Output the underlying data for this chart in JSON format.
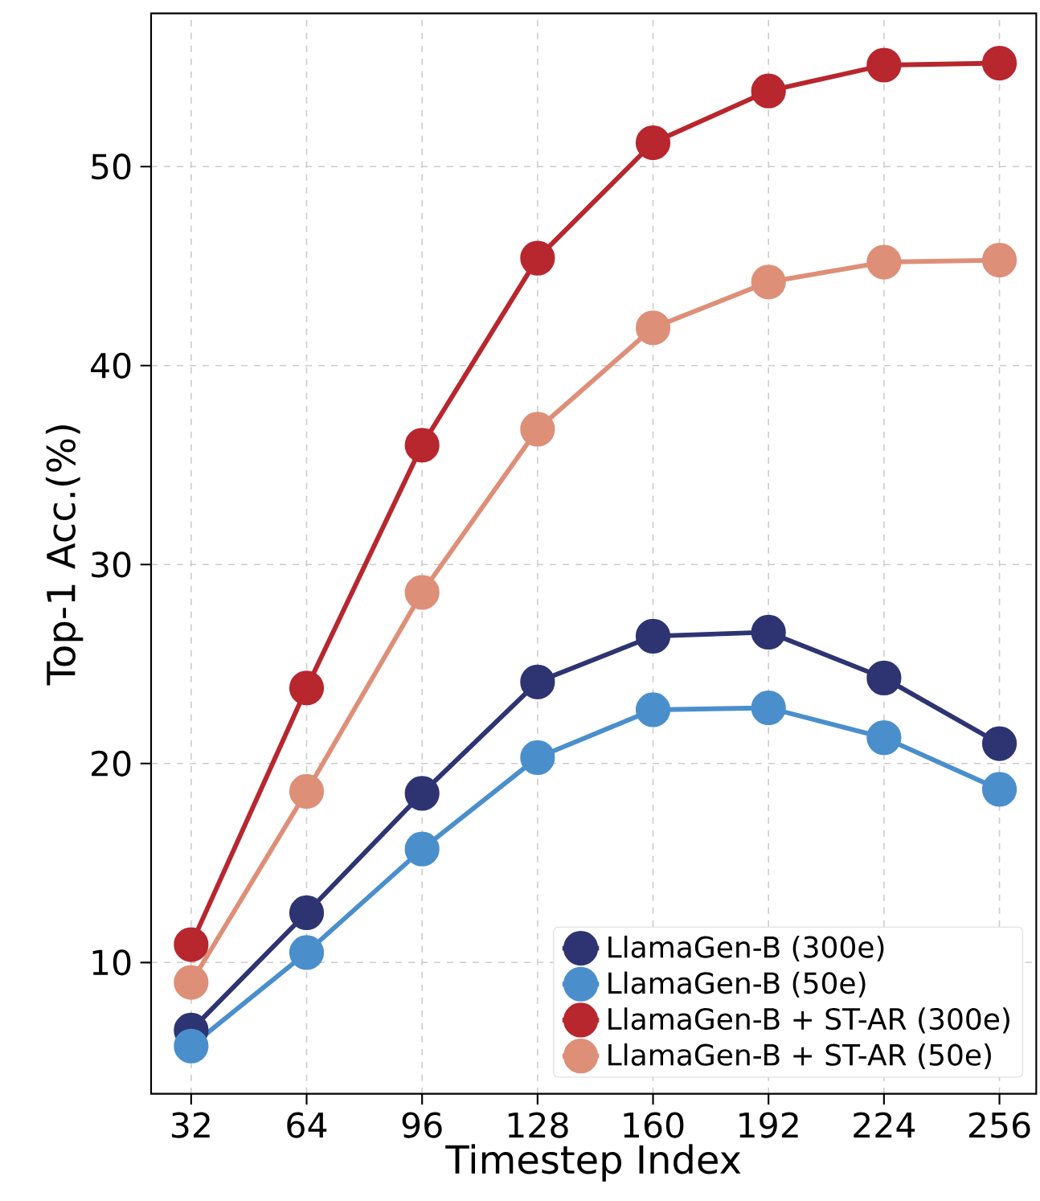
{
  "chart_data": {
    "type": "line",
    "xlabel": "Timestep Index",
    "ylabel": "Top-1 Acc.(%)",
    "x": [
      32,
      64,
      96,
      128,
      160,
      192,
      224,
      256
    ],
    "xlim": [
      20.9,
      266.2
    ],
    "ylim": [
      3.4,
      57.7
    ],
    "xticks": [
      32,
      64,
      96,
      128,
      160,
      192,
      224,
      256
    ],
    "yticks": [
      10,
      20,
      30,
      40,
      50
    ],
    "grid": true,
    "legend": "bottom right",
    "marker": "circle",
    "line_style": "solid",
    "series": [
      {
        "name": "LlamaGen-B (300e)",
        "color": "#2e3472",
        "values": [
          6.6,
          12.5,
          18.5,
          24.1,
          26.4,
          26.6,
          24.3,
          21.0
        ]
      },
      {
        "name": "LlamaGen-B (50e)",
        "color": "#4a8fcc",
        "values": [
          5.8,
          10.5,
          15.7,
          20.3,
          22.7,
          22.8,
          21.3,
          18.7
        ]
      },
      {
        "name": "LlamaGen-B + ST-AR (300e)",
        "color": "#b8262e",
        "values": [
          10.9,
          23.8,
          36.0,
          45.4,
          51.2,
          53.8,
          55.1,
          55.2
        ]
      },
      {
        "name": "LlamaGen-B + ST-AR (50e)",
        "color": "#de8f78",
        "values": [
          9.0,
          18.6,
          28.6,
          36.8,
          41.9,
          44.2,
          45.2,
          45.3
        ]
      }
    ]
  }
}
